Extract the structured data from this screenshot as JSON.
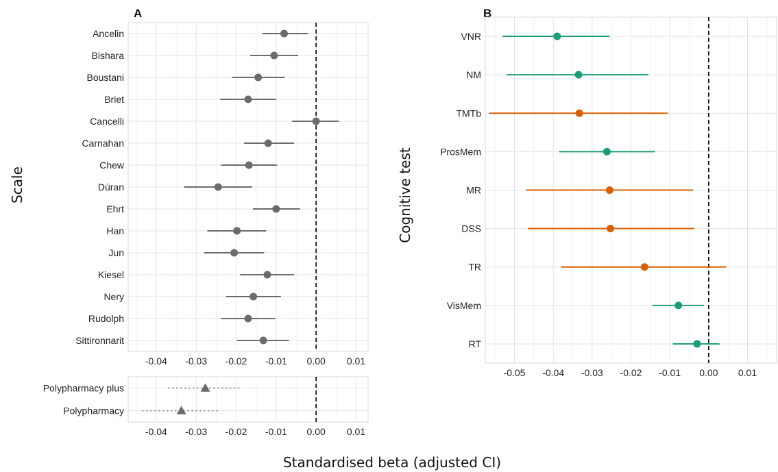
{
  "figure": {
    "x_axis_title": "Standardised beta (adjusted CI)"
  },
  "chart_data": [
    {
      "type": "scatter",
      "panel_label": "A",
      "ylabel": "Scale",
      "xlim": [
        -0.047,
        0.013
      ],
      "xticks": [
        -0.04,
        -0.03,
        -0.02,
        -0.01,
        0.0,
        0.01
      ],
      "xtick_labels": [
        "-0.04",
        "-0.03",
        "-0.02",
        "-0.01",
        "0.00",
        "0.01"
      ],
      "reference_line": 0.0,
      "grid": true,
      "marker": "circle",
      "point_color": "#6b6b6b",
      "rows": [
        {
          "label": "Ancelin",
          "estimate": -0.008,
          "lower": -0.0135,
          "upper": -0.002
        },
        {
          "label": "Bishara",
          "estimate": -0.0105,
          "lower": -0.0165,
          "upper": -0.0045
        },
        {
          "label": "Boustani",
          "estimate": -0.0145,
          "lower": -0.021,
          "upper": -0.0078
        },
        {
          "label": "Briet",
          "estimate": -0.017,
          "lower": -0.024,
          "upper": -0.01
        },
        {
          "label": "Cancelli",
          "estimate": 0.0,
          "lower": -0.006,
          "upper": 0.0057
        },
        {
          "label": "Carnahan",
          "estimate": -0.012,
          "lower": -0.018,
          "upper": -0.0055
        },
        {
          "label": "Chew",
          "estimate": -0.0168,
          "lower": -0.0238,
          "upper": -0.0098
        },
        {
          "label": "Dúran",
          "estimate": -0.0245,
          "lower": -0.033,
          "upper": -0.016
        },
        {
          "label": "Ehrt",
          "estimate": -0.01,
          "lower": -0.0158,
          "upper": -0.004
        },
        {
          "label": "Han",
          "estimate": -0.0198,
          "lower": -0.0272,
          "upper": -0.0125
        },
        {
          "label": "Jun",
          "estimate": -0.0205,
          "lower": -0.028,
          "upper": -0.013
        },
        {
          "label": "Kiesel",
          "estimate": -0.0122,
          "lower": -0.019,
          "upper": -0.0055
        },
        {
          "label": "Nery",
          "estimate": -0.0157,
          "lower": -0.0225,
          "upper": -0.0088
        },
        {
          "label": "Rudolph",
          "estimate": -0.017,
          "lower": -0.0238,
          "upper": -0.0102
        },
        {
          "label": "Sittironnarit",
          "estimate": -0.0132,
          "lower": -0.0198,
          "upper": -0.0068
        }
      ]
    },
    {
      "type": "scatter",
      "ylabel": "",
      "xlim": [
        -0.047,
        0.013
      ],
      "xticks": [
        -0.04,
        -0.03,
        -0.02,
        -0.01,
        0.0,
        0.01
      ],
      "xtick_labels": [
        "-0.04",
        "-0.03",
        "-0.02",
        "-0.01",
        "0.00",
        "0.01"
      ],
      "reference_line": 0.0,
      "grid": true,
      "marker": "triangle",
      "interval_style": "dotted",
      "point_color": "#6b6b6b",
      "rows": [
        {
          "label": "Polypharmacy plus",
          "estimate": -0.0277,
          "lower": -0.037,
          "upper": -0.019
        },
        {
          "label": "Polypharmacy",
          "estimate": -0.0337,
          "lower": -0.0435,
          "upper": -0.0245
        }
      ]
    },
    {
      "type": "scatter",
      "panel_label": "B",
      "ylabel": "Cognitive test",
      "xlim": [
        -0.0575,
        0.0175
      ],
      "xticks": [
        -0.05,
        -0.04,
        -0.03,
        -0.02,
        -0.01,
        0.0,
        0.01
      ],
      "xtick_labels": [
        "-0.05",
        "-0.04",
        "-0.03",
        "-0.02",
        "-0.01",
        "0.00",
        "0.01"
      ],
      "reference_line": 0.0,
      "grid": true,
      "marker": "circle",
      "colors": {
        "green": "#1b9e77",
        "orange": "#d95f02"
      },
      "rows": [
        {
          "label": "VNR",
          "estimate": -0.039,
          "lower": -0.053,
          "upper": -0.0255,
          "color": "green"
        },
        {
          "label": "NM",
          "estimate": -0.0335,
          "lower": -0.052,
          "upper": -0.0155,
          "color": "green"
        },
        {
          "label": "TMTb",
          "estimate": -0.0333,
          "lower": -0.0565,
          "upper": -0.0105,
          "color": "orange"
        },
        {
          "label": "ProsMem",
          "estimate": -0.0262,
          "lower": -0.0385,
          "upper": -0.0138,
          "color": "green"
        },
        {
          "label": "MR",
          "estimate": -0.0255,
          "lower": -0.047,
          "upper": -0.004,
          "color": "orange"
        },
        {
          "label": "DSS",
          "estimate": -0.0253,
          "lower": -0.0465,
          "upper": -0.0038,
          "color": "orange"
        },
        {
          "label": "TR",
          "estimate": -0.0165,
          "lower": -0.038,
          "upper": 0.0045,
          "color": "orange"
        },
        {
          "label": "VisMem",
          "estimate": -0.0078,
          "lower": -0.0145,
          "upper": -0.0012,
          "color": "green"
        },
        {
          "label": "RT",
          "estimate": -0.003,
          "lower": -0.0092,
          "upper": 0.0028,
          "color": "green"
        }
      ]
    }
  ]
}
